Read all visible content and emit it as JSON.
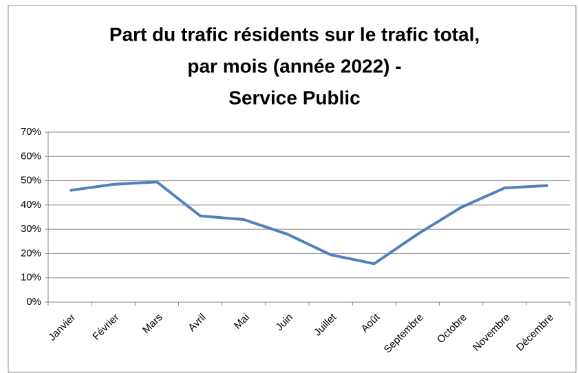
{
  "chart_data": {
    "type": "line",
    "title": [
      "Part du trafic résidents sur le trafic total,",
      "par mois (année 2022) -",
      "Service Public"
    ],
    "categories": [
      "Janvier",
      "Février",
      "Mars",
      "Avril",
      "Mai",
      "Juin",
      "Juillet",
      "Août",
      "Septembre",
      "Octobre",
      "Novembre",
      "Décembre"
    ],
    "series": [
      {
        "color": "#4f81bd",
        "values": [
          46,
          48.5,
          49.5,
          35.5,
          34,
          28,
          19.5,
          15.8,
          28,
          39,
          47,
          48
        ]
      }
    ],
    "ylim": [
      0,
      70
    ],
    "yticks": [
      {
        "value": 0,
        "label": "0%"
      },
      {
        "value": 10,
        "label": "10%"
      },
      {
        "value": 20,
        "label": "20%"
      },
      {
        "value": 30,
        "label": "30%"
      },
      {
        "value": 40,
        "label": "40%"
      },
      {
        "value": 50,
        "label": "50%"
      },
      {
        "value": 60,
        "label": "60%"
      },
      {
        "value": 70,
        "label": "70%"
      }
    ],
    "grid": true
  }
}
